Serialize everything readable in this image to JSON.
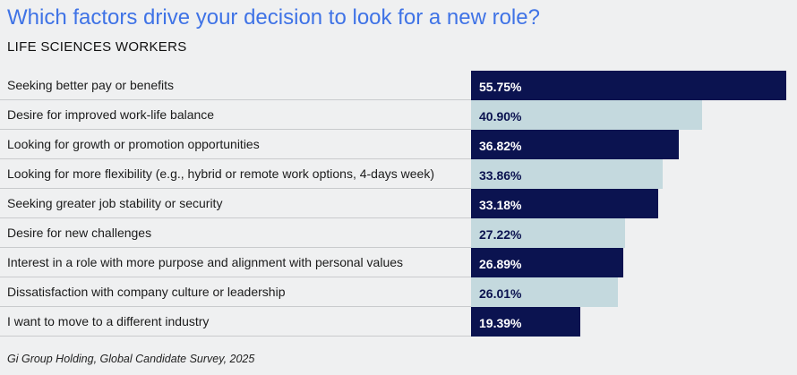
{
  "chart_data": {
    "type": "bar",
    "orientation": "horizontal",
    "title": "Which factors drive your decision to look for a new role?",
    "subtitle": "LIFE SCIENCES WORKERS",
    "categories": [
      "Seeking better pay or benefits",
      "Desire for improved work-life balance",
      "Looking for growth or promotion opportunities",
      "Looking for more flexibility (e.g., hybrid or remote work options, 4-days week)",
      "Seeking greater job stability or security",
      "Desire for new challenges",
      "Interest in a role with more purpose and alignment with personal values",
      "Dissatisfaction with company culture or leadership",
      "I want to move to a different industry"
    ],
    "values": [
      55.75,
      40.9,
      36.82,
      33.86,
      33.18,
      27.22,
      26.89,
      26.01,
      19.39
    ],
    "value_labels": [
      "55.75%",
      "40.90%",
      "36.82%",
      "33.86%",
      "33.18%",
      "27.22%",
      "26.89%",
      "26.01%",
      "19.39%"
    ],
    "unit": "%",
    "xlim": [
      0,
      55.75
    ],
    "xlabel": "",
    "ylabel": "",
    "grid": false,
    "legend": "none",
    "source": "Gi Group Holding, Global Candidate Survey, 2025"
  },
  "colors": {
    "title": "#3f73e6",
    "dark_bar": "#0b1350",
    "light_bar": "#c4d9de",
    "dark_bar_text": "#ffffff",
    "light_bar_text": "#0b1350",
    "background": "#eff0f1"
  }
}
